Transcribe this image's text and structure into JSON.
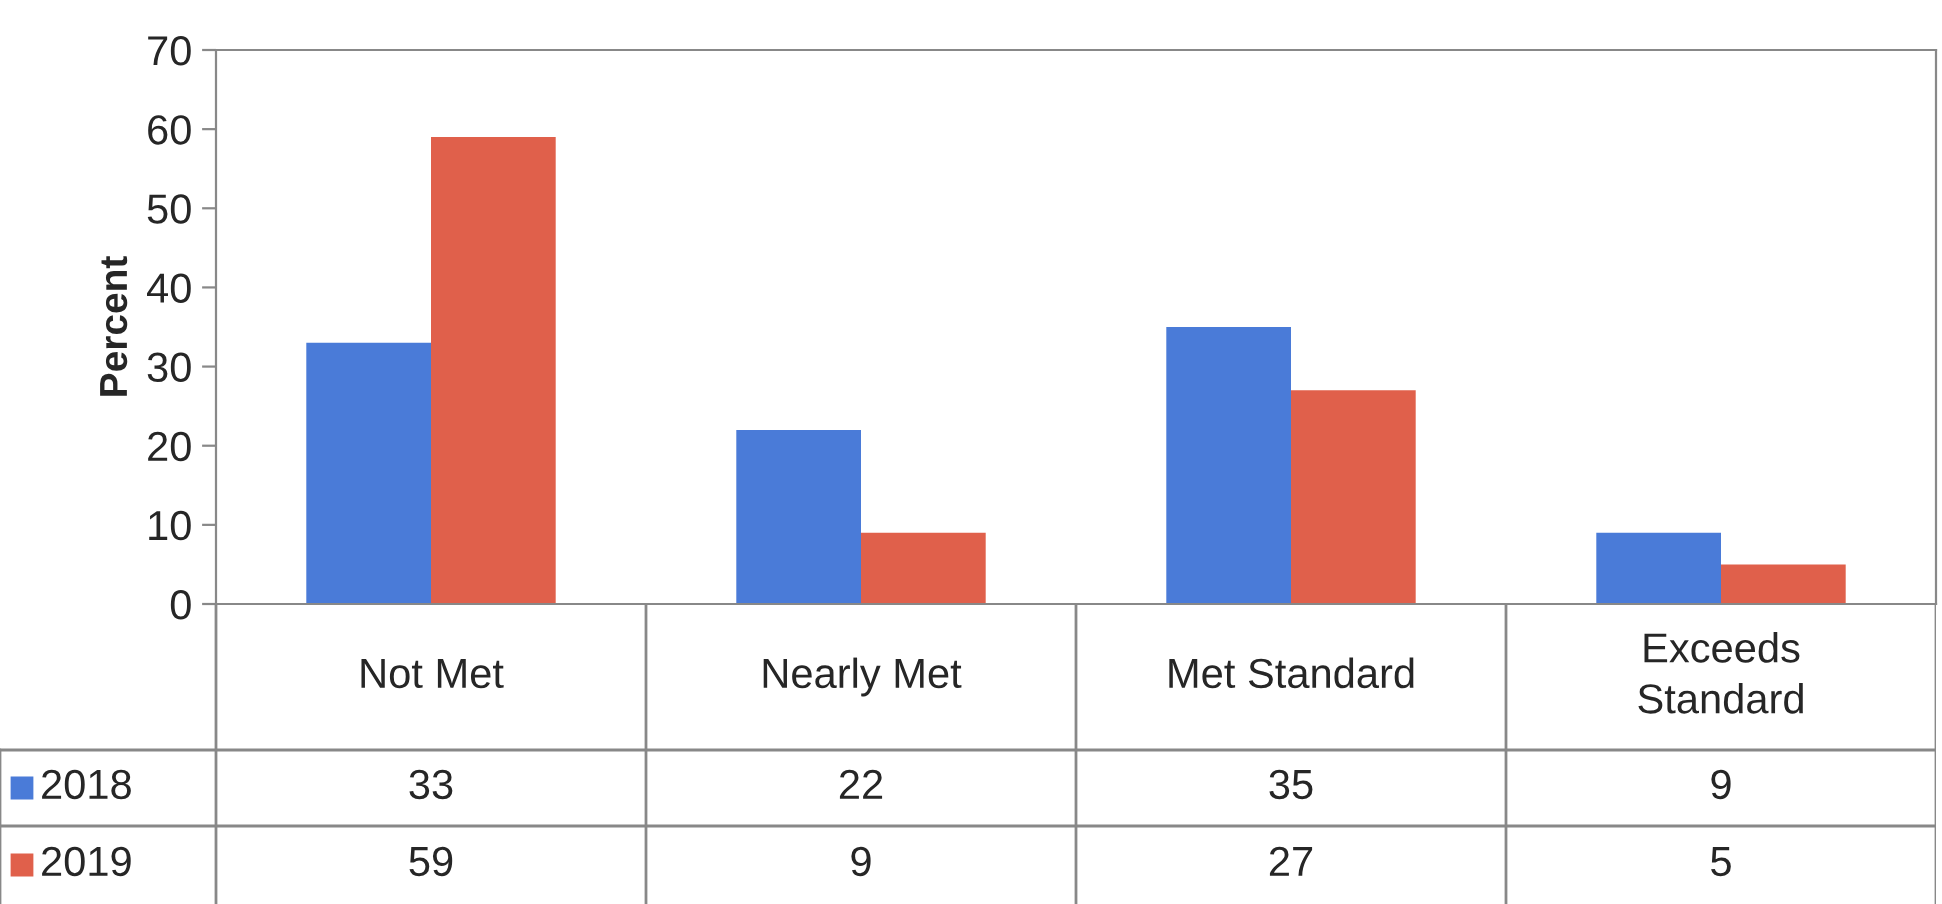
{
  "chart_data": {
    "type": "bar",
    "ylabel": "Percent",
    "categories": [
      "Not Met",
      "Nearly Met",
      "Met Standard",
      "Exceeds\nStandard"
    ],
    "series": [
      {
        "name": "2018",
        "color": "#4a7bd8",
        "values": [
          33,
          22,
          35,
          9
        ]
      },
      {
        "name": "2019",
        "color": "#e0604b",
        "values": [
          59,
          9,
          27,
          5
        ]
      }
    ],
    "ylim": [
      0,
      70
    ],
    "yticks": [
      0,
      10,
      20,
      30,
      40,
      50,
      60,
      70
    ],
    "grid": false,
    "legend": "bottom left",
    "data_labels": true
  }
}
